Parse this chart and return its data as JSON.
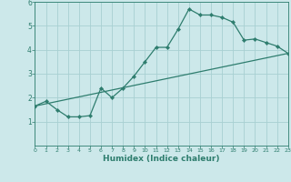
{
  "xlabel": "Humidex (Indice chaleur)",
  "background_color": "#cce8ea",
  "grid_color": "#a8d0d2",
  "line_color": "#2e7d6e",
  "xlim": [
    0,
    23
  ],
  "ylim": [
    0,
    6
  ],
  "xticks": [
    0,
    1,
    2,
    3,
    4,
    5,
    6,
    7,
    8,
    9,
    10,
    11,
    12,
    13,
    14,
    15,
    16,
    17,
    18,
    19,
    20,
    21,
    22,
    23
  ],
  "yticks": [
    1,
    2,
    3,
    4,
    5,
    6
  ],
  "curve1_x": [
    0,
    1,
    2,
    3,
    4,
    5,
    6,
    7,
    8,
    9,
    10,
    11,
    12,
    13,
    14,
    15,
    16,
    17,
    18,
    19,
    20,
    21,
    22,
    23
  ],
  "curve1_y": [
    1.65,
    1.85,
    1.5,
    1.2,
    1.2,
    1.25,
    2.4,
    2.0,
    2.4,
    2.9,
    3.5,
    4.1,
    4.1,
    4.85,
    5.7,
    5.45,
    5.45,
    5.35,
    5.15,
    4.4,
    4.45,
    4.3,
    4.15,
    3.85
  ],
  "curve2_x": [
    0,
    23
  ],
  "curve2_y": [
    1.65,
    3.85
  ]
}
